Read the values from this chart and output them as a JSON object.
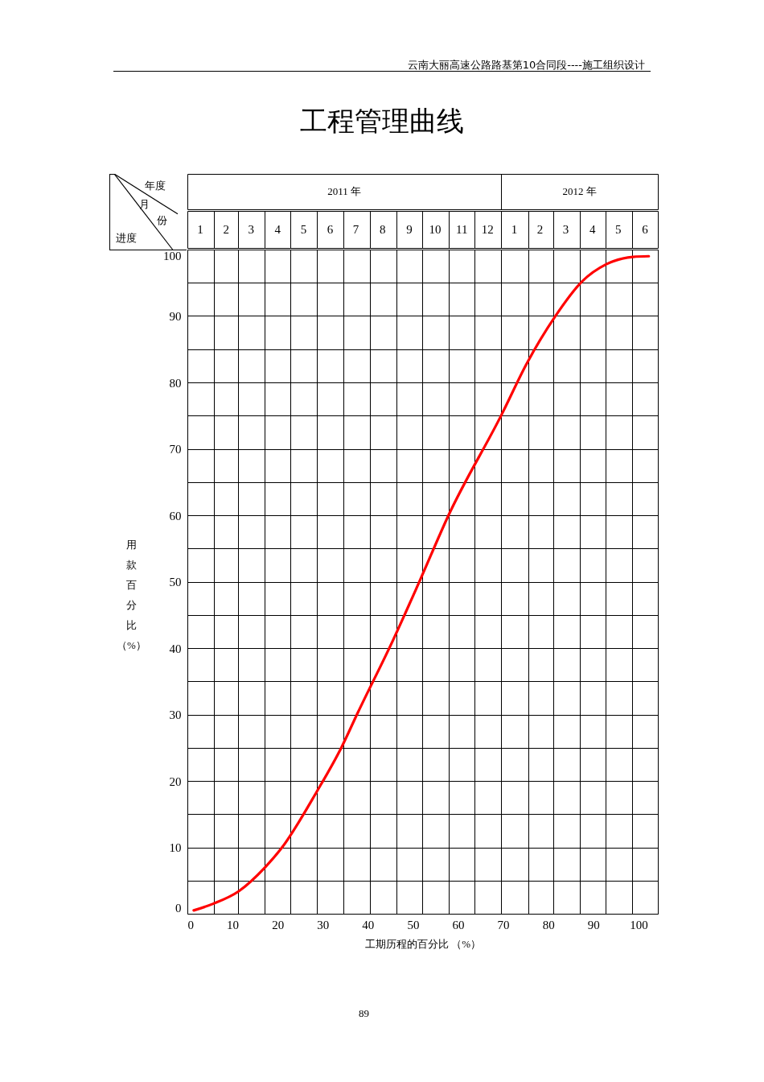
{
  "chart_data": {
    "type": "line",
    "title": "工程管理曲线",
    "xlabel": "工期历程的百分比 （%）",
    "ylabel": "用款百分比（%）",
    "x": [
      1.4,
      5.7,
      11.4,
      17.1,
      20.9,
      28.7,
      34.2,
      37.8,
      45.6,
      51.5,
      57.9,
      69.7,
      75.2,
      81.5,
      87.5,
      92.9,
      98.8,
      102.3
    ],
    "values": [
      0.5,
      1.5,
      3.4,
      6.9,
      9.9,
      18.4,
      25.1,
      30.3,
      41.2,
      50.1,
      60.0,
      75.2,
      82.8,
      89.9,
      95.2,
      97.8,
      98.9,
      99.0
    ],
    "color": "#ff0000",
    "xlim": [
      0,
      104.3
    ],
    "xticks": [
      0,
      10,
      20,
      30,
      40,
      50,
      60,
      70,
      80,
      90,
      100
    ],
    "ylim": [
      0,
      100
    ],
    "yticks": [
      0,
      {
        "value": 5,
        "label": null
      },
      10,
      {
        "value": 15,
        "label": null
      },
      20,
      {
        "value": 25,
        "label": null
      },
      30,
      {
        "value": 35,
        "label": null
      },
      40,
      {
        "value": 45,
        "label": null
      },
      50,
      {
        "value": 55,
        "label": null
      },
      60,
      {
        "value": 65,
        "label": null
      },
      70,
      {
        "value": 75,
        "label": null
      },
      80,
      {
        "value": 85,
        "label": null
      },
      90,
      {
        "value": 95,
        "label": null
      },
      100
    ],
    "x2lim": [
      "2011-01-01",
      "2012-07-01"
    ],
    "x2ticks": [
      {
        "value": "2011-01-16",
        "label": "1"
      },
      {
        "value": "2011-02-15",
        "label": "2"
      },
      {
        "value": "2011-03-16",
        "label": "3"
      },
      {
        "value": "2011-04-16",
        "label": "4"
      },
      {
        "value": "2011-05-16",
        "label": "5"
      },
      {
        "value": "2011-06-16",
        "label": "6"
      },
      {
        "value": "2011-07-16",
        "label": "7"
      },
      {
        "value": "2011-08-16",
        "label": "8"
      },
      {
        "value": "2011-09-16",
        "label": "9"
      },
      {
        "value": "2011-10-16",
        "label": "10"
      },
      {
        "value": "2011-11-16",
        "label": "11"
      },
      {
        "value": "2011-12-16",
        "label": "12"
      },
      {
        "value": "2012-01-16",
        "label": "1"
      },
      {
        "value": "2012-02-15",
        "label": "2"
      },
      {
        "value": "2012-03-16",
        "label": "3"
      },
      {
        "value": "2012-04-16",
        "label": "4"
      },
      {
        "value": "2012-05-16",
        "label": "5"
      },
      {
        "value": "2012-06-16",
        "label": "6"
      }
    ],
    "grid": true,
    "annotations": [
      "云南大丽高速公路路基第10合同段----施工组织设计",
      "2011 年",
      "2012 年",
      "年度",
      "月",
      "份",
      "进度",
      "89"
    ]
  }
}
